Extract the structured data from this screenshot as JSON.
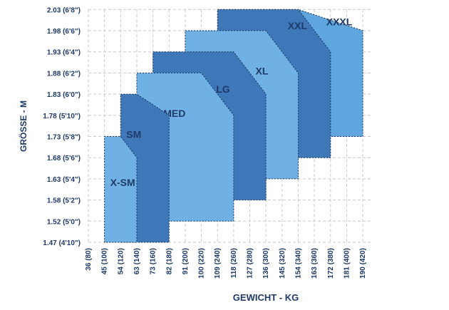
{
  "chart_data": {
    "type": "area",
    "title": "",
    "xlabel": "GEWICHT - KG",
    "ylabel": "GRÖSSE - M",
    "grid": true,
    "x_ticks": [
      "36 (80)",
      "45 (100)",
      "54 (120)",
      "63 (140)",
      "73 (160)",
      "82 (180)",
      "91 (200)",
      "100 (220)",
      "109 (240)",
      "118 (260)",
      "127 (280)",
      "136 (300)",
      "145 (320)",
      "154 (340)",
      "163 (360)",
      "172 (380)",
      "181 (400)",
      "190 (420)"
    ],
    "y_ticks": [
      "1.47 (4'10\")",
      "1.52 (5'0\")",
      "1.58 (5'2\")",
      "1.63 (5'4\")",
      "1.68 (5'6\")",
      "1.73 (5'8\")",
      "1.78 (5'10\")",
      "1.83 (6'0\")",
      "1.88 (6'2\")",
      "1.93 (6'4\")",
      "1.98 (6'6\")",
      "2.03 (6'8\")"
    ],
    "sizes": [
      {
        "label": "XXXL",
        "color": "#5ea6dd",
        "x_min": "154 (340)",
        "x_max": "190 (420)",
        "y_min": "1.73 (5'8\")",
        "y_max": "2.03 (6'8\")",
        "x_corner_start": "154 (340)",
        "y_corner_end": "1.98 (6'6\")"
      },
      {
        "label": "XXL",
        "color": "#3e78b9",
        "x_min": "109 (240)",
        "x_max": "172 (380)",
        "y_min": "1.68 (5'6\")",
        "y_max": "2.03 (6'8\")",
        "x_corner_start": "154 (340)",
        "y_corner_end": "1.93 (6'4\")"
      },
      {
        "label": "XL",
        "color": "#6fb1e4",
        "x_min": "91 (200)",
        "x_max": "154 (340)",
        "y_min": "1.63 (5'4\")",
        "y_max": "1.98 (6'6\")",
        "x_corner_start": "136 (300)",
        "y_corner_end": "1.88 (6'2\")"
      },
      {
        "label": "LG",
        "color": "#3e78b9",
        "x_min": "73 (160)",
        "x_max": "136 (300)",
        "y_min": "1.58 (5'2\")",
        "y_max": "1.93 (6'4\")",
        "x_corner_start": "118 (260)",
        "y_corner_end": "1.83 (6'0\")"
      },
      {
        "label": "MED",
        "color": "#6fb1e4",
        "x_min": "63 (140)",
        "x_max": "118 (260)",
        "y_min": "1.52 (5'0\")",
        "y_max": "1.88 (6'2\")",
        "x_corner_start": "100 (220)",
        "y_corner_end": "1.78 (5'10\")"
      },
      {
        "label": "SM",
        "color": "#3e78b9",
        "x_min": "54 (120)",
        "x_max": "82 (180)",
        "y_min": "1.47 (4'10\")",
        "y_max": "1.83 (6'0\")",
        "x_corner_start": "63 (140)",
        "y_corner_end": "1.78 (5'10\")"
      },
      {
        "label": "X-SM",
        "color": "#6fb1e4",
        "x_min": "45 (100)",
        "x_max": "63 (140)",
        "y_min": "1.47 (4'10\")",
        "y_max": "1.73 (5'8\")",
        "x_corner_start": "54 (120)",
        "y_corner_end": "1.68 (5'6\")"
      }
    ]
  }
}
